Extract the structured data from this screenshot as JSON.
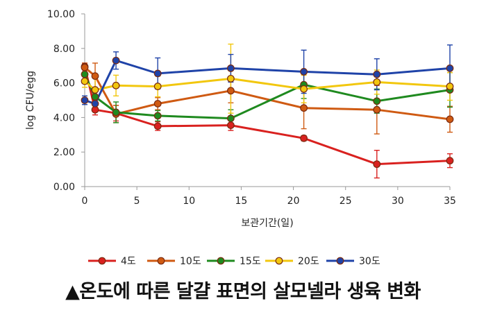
{
  "caption": "▲온도에 따른 달걀 표면의 살모넬라 생육 변화",
  "chart_data": {
    "type": "line",
    "title": "",
    "xlabel": "보관기간(일)",
    "ylabel": "log CFU/egg",
    "xlim": [
      0,
      35
    ],
    "ylim": [
      0,
      10
    ],
    "x_ticks": [
      0,
      5,
      10,
      15,
      20,
      25,
      30,
      35
    ],
    "x_tick_labels": [
      "0",
      "5",
      "10",
      "15",
      "20",
      "25",
      "30",
      "35"
    ],
    "y_ticks": [
      0,
      2,
      4,
      6,
      8,
      10
    ],
    "y_tick_labels": [
      "0.00",
      "2.00",
      "4.00",
      "6.00",
      "8.00",
      "10.00"
    ],
    "legend_position": "bottom",
    "grid": false,
    "series": [
      {
        "name": "4도",
        "color": "#d9211f",
        "x": [
          0,
          1,
          3,
          7,
          14,
          21,
          28,
          35
        ],
        "y": [
          6.95,
          4.45,
          4.25,
          3.5,
          3.55,
          2.8,
          1.3,
          1.5
        ],
        "err": [
          0.2,
          0.3,
          0.45,
          0.25,
          0.3,
          0.15,
          0.8,
          0.4
        ]
      },
      {
        "name": "10도",
        "color": "#cf5a12",
        "x": [
          0,
          1,
          3,
          7,
          14,
          21,
          28,
          35
        ],
        "y": [
          6.9,
          6.4,
          4.2,
          4.8,
          5.55,
          4.55,
          4.45,
          3.9
        ],
        "err": [
          0.25,
          0.75,
          0.5,
          0.35,
          0.7,
          1.2,
          1.4,
          0.75
        ]
      },
      {
        "name": "15도",
        "color": "#1f8a1f",
        "x": [
          0,
          1,
          3,
          7,
          14,
          21,
          28,
          35
        ],
        "y": [
          6.5,
          5.2,
          4.3,
          4.1,
          3.95,
          5.9,
          4.95,
          5.6
        ],
        "err": [
          0.3,
          0.4,
          0.6,
          0.3,
          0.5,
          0.8,
          0.7,
          1.0
        ]
      },
      {
        "name": "20도",
        "color": "#f2c70e",
        "x": [
          0,
          1,
          3,
          7,
          14,
          21,
          28,
          35
        ],
        "y": [
          6.1,
          5.6,
          5.85,
          5.8,
          6.25,
          5.65,
          6.05,
          5.8
        ],
        "err": [
          0.35,
          0.8,
          0.6,
          0.6,
          2.0,
          0.8,
          0.7,
          0.8
        ]
      },
      {
        "name": "30도",
        "color": "#1f43a8",
        "x": [
          0,
          1,
          3,
          7,
          14,
          21,
          28,
          35
        ],
        "y": [
          5.0,
          4.8,
          7.3,
          6.55,
          6.85,
          6.65,
          6.5,
          6.85
        ],
        "err": [
          0.25,
          0.3,
          0.5,
          0.9,
          0.8,
          1.25,
          0.9,
          1.35
        ]
      }
    ]
  }
}
